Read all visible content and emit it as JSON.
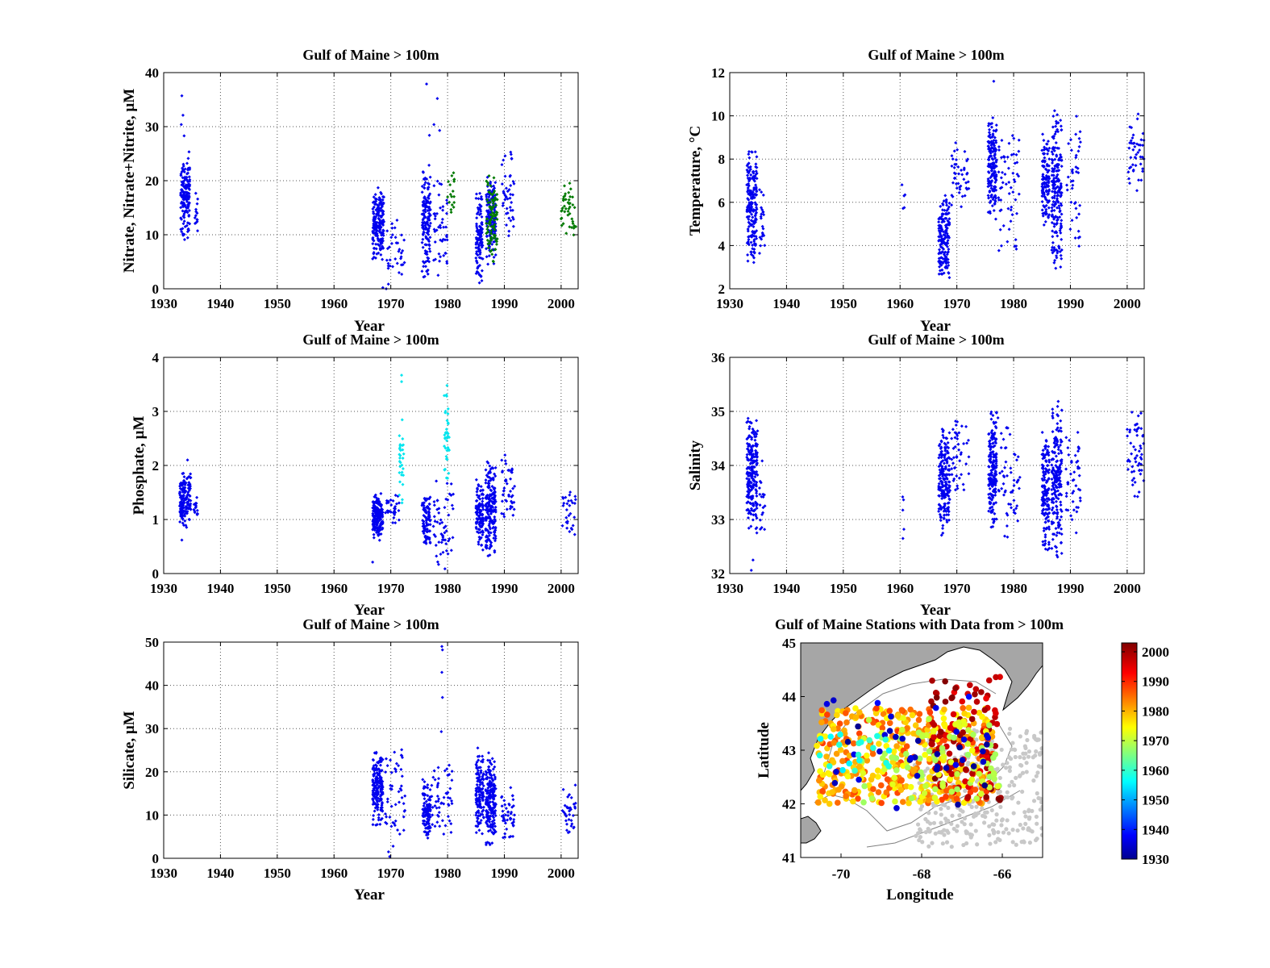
{
  "colors": {
    "blue": "#0000ee",
    "green": "#007a00",
    "cyan": "#00e5ee",
    "grid": "#555555",
    "land": "#a6a6a6",
    "contour": "#808080"
  },
  "chart_data": [
    {
      "id": "nitrate",
      "type": "scatter",
      "title": "Gulf of Maine > 100m",
      "xlabel": "Year",
      "ylabel": "Nitrate, Nitrate+Nitrite, µM",
      "xlim": [
        1930,
        2003
      ],
      "ylim": [
        0,
        40
      ],
      "xticks": [
        1930,
        1940,
        1950,
        1960,
        1970,
        1980,
        1990,
        2000
      ],
      "yticks": [
        0,
        10,
        20,
        30,
        40
      ],
      "grid": true,
      "series": [
        {
          "color": "blue",
          "clusters": [
            {
              "x": [
                1933.0,
                1934.6
              ],
              "y": [
                8,
                26
              ],
              "n": 160
            },
            {
              "x": [
                1935.5,
                1936.0
              ],
              "y": [
                10,
                19
              ],
              "n": 14
            },
            {
              "x": [
                1966.8,
                1968.8
              ],
              "y": [
                5,
                19
              ],
              "n": 190
            },
            {
              "x": [
                1969.3,
                1972.5
              ],
              "y": [
                0,
                14
              ],
              "n": 36
            },
            {
              "x": [
                1975.5,
                1977.0
              ],
              "y": [
                1,
                24
              ],
              "n": 140
            },
            {
              "x": [
                1977.5,
                1980.0
              ],
              "y": [
                1,
                22
              ],
              "n": 45
            },
            {
              "x": [
                1985.0,
                1986.2
              ],
              "y": [
                0.5,
                19
              ],
              "n": 110
            },
            {
              "x": [
                1986.8,
                1988.5
              ],
              "y": [
                4,
                21
              ],
              "n": 160
            },
            {
              "x": [
                1989.5,
                1991.8
              ],
              "y": [
                8,
                26
              ],
              "n": 45
            }
          ],
          "points": [
            [
              1933.2,
              35.7
            ],
            [
              1933.4,
              32.1
            ],
            [
              1933.1,
              30.4
            ],
            [
              1933.6,
              28.3
            ],
            [
              1976.3,
              37.9
            ],
            [
              1978.2,
              35.2
            ],
            [
              1977.6,
              30.4
            ],
            [
              1978.6,
              29.3
            ],
            [
              1976.8,
              28.4
            ],
            [
              1969.2,
              0
            ],
            [
              1968.6,
              0.2
            ]
          ]
        },
        {
          "color": "green",
          "clusters": [
            {
              "x": [
                1980.0,
                1981.2
              ],
              "y": [
                13,
                22
              ],
              "n": 18
            },
            {
              "x": [
                1986.8,
                1988.8
              ],
              "y": [
                4,
                22
              ],
              "n": 95
            },
            {
              "x": [
                2000.0,
                2002.6
              ],
              "y": [
                9,
                20.5
              ],
              "n": 45
            }
          ],
          "points": []
        }
      ]
    },
    {
      "id": "temperature",
      "type": "scatter",
      "title": "Gulf of Maine > 100m",
      "xlabel": "Year",
      "ylabel": "Temperature, °C",
      "xlim": [
        1930,
        2003
      ],
      "ylim": [
        2,
        12
      ],
      "xticks": [
        1930,
        1940,
        1950,
        1960,
        1970,
        1980,
        1990,
        2000
      ],
      "yticks": [
        2,
        4,
        6,
        8,
        10,
        12
      ],
      "grid": true,
      "series": [
        {
          "color": "blue",
          "clusters": [
            {
              "x": [
                1933.0,
                1934.8
              ],
              "y": [
                2.9,
                8.7
              ],
              "n": 190
            },
            {
              "x": [
                1935.2,
                1936.2
              ],
              "y": [
                3.0,
                7.5
              ],
              "n": 22
            },
            {
              "x": [
                1960.3,
                1960.9
              ],
              "y": [
                5.3,
                7.5
              ],
              "n": 5
            },
            {
              "x": [
                1966.8,
                1968.7
              ],
              "y": [
                2.3,
                6.5
              ],
              "n": 170
            },
            {
              "x": [
                1969.0,
                1972.2
              ],
              "y": [
                5.5,
                9.0
              ],
              "n": 45
            },
            {
              "x": [
                1975.5,
                1977.0
              ],
              "y": [
                5.0,
                10.2
              ],
              "n": 170
            },
            {
              "x": [
                1977.3,
                1981.0
              ],
              "y": [
                3.0,
                10.3
              ],
              "n": 60
            },
            {
              "x": [
                1985.0,
                1986.3
              ],
              "y": [
                4.5,
                9.4
              ],
              "n": 120
            },
            {
              "x": [
                1986.7,
                1988.5
              ],
              "y": [
                2.5,
                10.4
              ],
              "n": 190
            },
            {
              "x": [
                1989.3,
                1991.8
              ],
              "y": [
                3.5,
                10.5
              ],
              "n": 40
            },
            {
              "x": [
                2000.0,
                2003.0
              ],
              "y": [
                6.5,
                10.2
              ],
              "n": 45
            }
          ],
          "points": [
            [
              1976.5,
              11.6
            ]
          ]
        }
      ]
    },
    {
      "id": "phosphate",
      "type": "scatter",
      "title": "Gulf of Maine > 100m",
      "xlabel": "Year",
      "ylabel": "Phosphate,  µM",
      "xlim": [
        1930,
        2003
      ],
      "ylim": [
        0,
        4
      ],
      "xticks": [
        1930,
        1940,
        1950,
        1960,
        1970,
        1980,
        1990,
        2000
      ],
      "yticks": [
        0,
        1,
        2,
        3,
        4
      ],
      "grid": true,
      "series": [
        {
          "color": "blue",
          "clusters": [
            {
              "x": [
                1932.8,
                1934.8
              ],
              "y": [
                0.8,
                1.95
              ],
              "n": 150
            },
            {
              "x": [
                1935.3,
                1936.2
              ],
              "y": [
                1.0,
                1.5
              ],
              "n": 14
            },
            {
              "x": [
                1966.8,
                1968.6
              ],
              "y": [
                0.6,
                1.5
              ],
              "n": 190
            },
            {
              "x": [
                1969.0,
                1971.5
              ],
              "y": [
                0.8,
                1.5
              ],
              "n": 30
            },
            {
              "x": [
                1975.5,
                1977.0
              ],
              "y": [
                0.4,
                1.5
              ],
              "n": 90
            },
            {
              "x": [
                1977.5,
                1981.0
              ],
              "y": [
                0.05,
                1.8
              ],
              "n": 55
            },
            {
              "x": [
                1985.0,
                1986.3
              ],
              "y": [
                0.4,
                1.75
              ],
              "n": 110
            },
            {
              "x": [
                1986.7,
                1988.5
              ],
              "y": [
                0.2,
                2.2
              ],
              "n": 190
            },
            {
              "x": [
                1989.5,
                1991.8
              ],
              "y": [
                0.8,
                2.25
              ],
              "n": 45
            },
            {
              "x": [
                2000.2,
                2002.6
              ],
              "y": [
                0.6,
                1.65
              ],
              "n": 30
            }
          ],
          "points": [
            [
              1933.2,
              0.62
            ],
            [
              1966.8,
              0.21
            ],
            [
              1934.2,
              2.1
            ]
          ]
        },
        {
          "color": "cyan",
          "clusters": [
            {
              "x": [
                1971.5,
                1972.3
              ],
              "y": [
                1.2,
                3.0
              ],
              "n": 30
            },
            {
              "x": [
                1979.4,
                1980.3
              ],
              "y": [
                1.6,
                3.45
              ],
              "n": 40
            }
          ],
          "points": [
            [
              1971.9,
              3.67
            ],
            [
              1971.9,
              3.55
            ],
            [
              1979.9,
              3.48
            ]
          ]
        }
      ]
    },
    {
      "id": "salinity",
      "type": "scatter",
      "title": "Gulf of Maine > 100m",
      "xlabel": "Year",
      "ylabel": "Salinity",
      "xlim": [
        1930,
        2003
      ],
      "ylim": [
        32,
        36
      ],
      "xticks": [
        1930,
        1940,
        1950,
        1960,
        1970,
        1980,
        1990,
        2000
      ],
      "yticks": [
        32,
        33,
        34,
        35,
        36
      ],
      "grid": true,
      "series": [
        {
          "color": "blue",
          "clusters": [
            {
              "x": [
                1933.0,
                1934.9
              ],
              "y": [
                32.6,
                35.05
              ],
              "n": 220
            },
            {
              "x": [
                1935.2,
                1936.2
              ],
              "y": [
                32.4,
                34.3
              ],
              "n": 18
            },
            {
              "x": [
                1960.4,
                1960.8
              ],
              "y": [
                32.7,
                33.7
              ],
              "n": 4
            },
            {
              "x": [
                1966.8,
                1968.8
              ],
              "y": [
                32.6,
                34.8
              ],
              "n": 200
            },
            {
              "x": [
                1969.0,
                1972.3
              ],
              "y": [
                33.3,
                35.05
              ],
              "n": 45
            },
            {
              "x": [
                1975.6,
                1977.0
              ],
              "y": [
                32.7,
                35.2
              ],
              "n": 190
            },
            {
              "x": [
                1977.2,
                1981.2
              ],
              "y": [
                32.6,
                35.05
              ],
              "n": 55
            },
            {
              "x": [
                1985.0,
                1986.3
              ],
              "y": [
                32.3,
                34.8
              ],
              "n": 150
            },
            {
              "x": [
                1986.7,
                1988.5
              ],
              "y": [
                32.2,
                35.25
              ],
              "n": 200
            },
            {
              "x": [
                1989.2,
                1991.8
              ],
              "y": [
                32.7,
                34.8
              ],
              "n": 45
            },
            {
              "x": [
                2000.0,
                2003.0
              ],
              "y": [
                33.2,
                35.15
              ],
              "n": 55
            }
          ],
          "points": [
            [
              1933.8,
              32.06
            ],
            [
              1934.1,
              32.25
            ],
            [
              1960.5,
              32.65
            ]
          ]
        }
      ]
    },
    {
      "id": "silicate",
      "type": "scatter",
      "title": "Gulf of Maine > 100m",
      "xlabel": "Year",
      "ylabel": "Silicate, µM",
      "xlim": [
        1930,
        2003
      ],
      "ylim": [
        0,
        50
      ],
      "xticks": [
        1930,
        1940,
        1950,
        1960,
        1970,
        1980,
        1990,
        2000
      ],
      "yticks": [
        0,
        10,
        20,
        30,
        40,
        50
      ],
      "grid": true,
      "series": [
        {
          "color": "blue",
          "clusters": [
            {
              "x": [
                1966.8,
                1968.6
              ],
              "y": [
                7,
                25.5
              ],
              "n": 180
            },
            {
              "x": [
                1969.0,
                1972.5
              ],
              "y": [
                2,
                29
              ],
              "n": 50
            },
            {
              "x": [
                1975.6,
                1977.0
              ],
              "y": [
                4,
                19
              ],
              "n": 110
            },
            {
              "x": [
                1977.2,
                1980.8
              ],
              "y": [
                4,
                22
              ],
              "n": 55
            },
            {
              "x": [
                1985.0,
                1986.4
              ],
              "y": [
                4,
                26
              ],
              "n": 130
            },
            {
              "x": [
                1986.7,
                1988.5
              ],
              "y": [
                1,
                26
              ],
              "n": 200
            },
            {
              "x": [
                1989.4,
                1991.8
              ],
              "y": [
                3,
                18
              ],
              "n": 45
            },
            {
              "x": [
                2000.2,
                2002.6
              ],
              "y": [
                5,
                17
              ],
              "n": 35
            }
          ],
          "points": [
            [
              1979.0,
              49.0
            ],
            [
              1979.1,
              48.2
            ],
            [
              1979.0,
              43.0
            ],
            [
              1979.1,
              37.2
            ],
            [
              1978.9,
              29.3
            ],
            [
              1969.8,
              0.4
            ],
            [
              1969.6,
              1.5
            ]
          ]
        }
      ]
    },
    {
      "id": "stations",
      "type": "scatter",
      "title": "Gulf of Maine Stations with Data from > 100m",
      "xlabel": "Longitude",
      "ylabel": "Latitude",
      "xlim": [
        -71,
        -65
      ],
      "ylim": [
        41,
        45
      ],
      "xticks": [
        -70,
        -68,
        -66
      ],
      "yticks": [
        41,
        42,
        43,
        44,
        45
      ],
      "grid": false,
      "colorbar": {
        "range": [
          1930,
          2003
        ],
        "ticks": [
          1930,
          1940,
          1950,
          1960,
          1970,
          1980,
          1990,
          2000
        ],
        "colormap": "jet"
      },
      "series": [
        {
          "name": "",
          "note_color_by": "year",
          "clusters": [
            {
              "lon": [
                -70.6,
                -66.2
              ],
              "lat": [
                42.0,
                43.8
              ],
              "year": [
                1975,
                1990
              ],
              "n": 420
            },
            {
              "lon": [
                -67.8,
                -66.0
              ],
              "lat": [
                42.0,
                44.4
              ],
              "year": [
                1995,
                2003
              ],
              "n": 110
            },
            {
              "lon": [
                -69.5,
                -66.0
              ],
              "lat": [
                42.0,
                43.6
              ],
              "year": [
                1968,
                1975
              ],
              "n": 90
            },
            {
              "lon": [
                -70.4,
                -66.2
              ],
              "lat": [
                41.9,
                44.0
              ],
              "year": [
                1930,
                1940
              ],
              "n": 40
            },
            {
              "lon": [
                -70.6,
                -68.8
              ],
              "lat": [
                42.6,
                43.3
              ],
              "year": [
                1956,
                1962
              ],
              "n": 20
            }
          ],
          "background_stations": {
            "lon": [
              -68.2,
              -65.0
            ],
            "lat": [
              41.2,
              43.4
            ],
            "n": 360
          }
        }
      ]
    }
  ]
}
